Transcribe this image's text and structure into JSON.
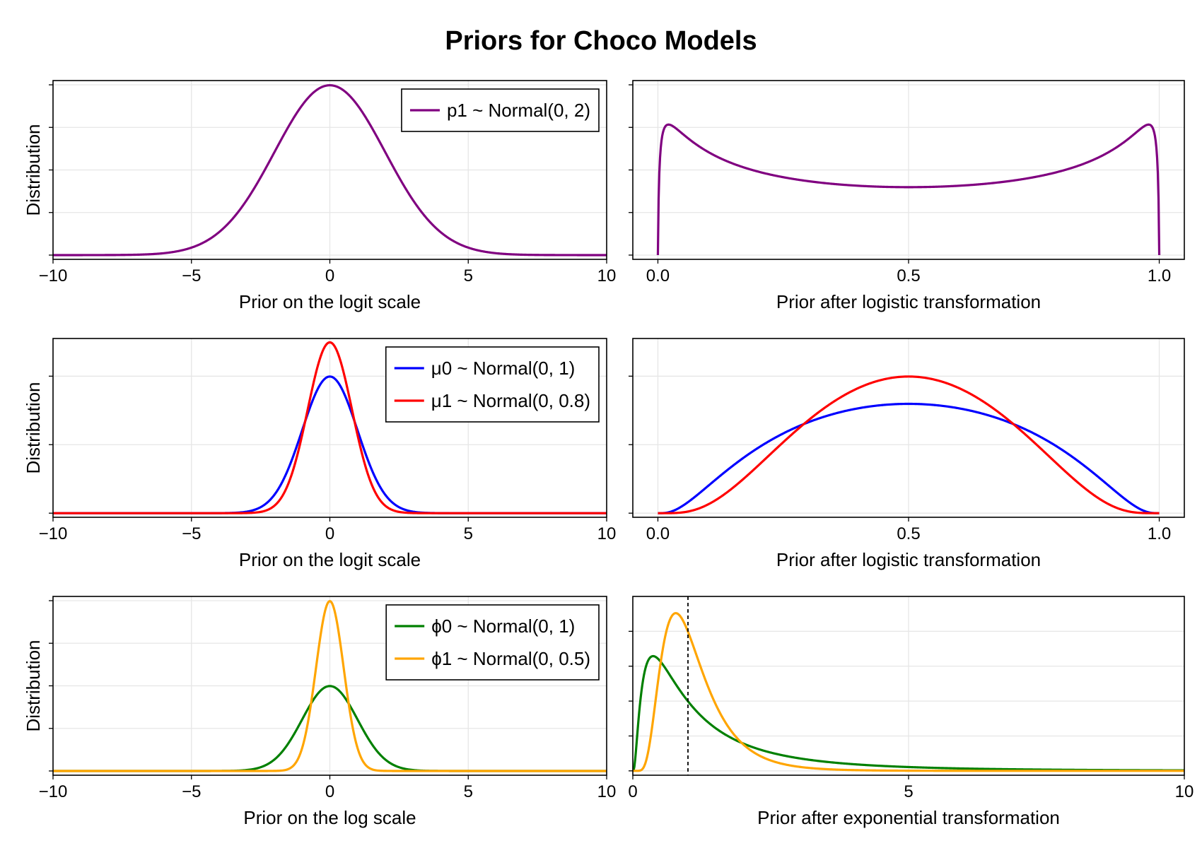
{
  "title": "Priors for Choco Models",
  "chart_data": [
    {
      "type": "line",
      "row": 0,
      "col": 0,
      "xlabel": "Prior on the logit scale",
      "ylabel": "Distribution",
      "xlim": [
        -10,
        10
      ],
      "ylim": [
        -0.005,
        0.205
      ],
      "xticks": [
        -10,
        -5,
        0,
        5,
        10
      ],
      "xticklabels": [
        "−10",
        "−5",
        "0",
        "5",
        "10"
      ],
      "yticks": [
        0,
        0.05,
        0.1,
        0.15,
        0.2
      ],
      "legend": "top-right",
      "series": [
        {
          "name": "p1 ~ Normal(0, 2)",
          "color": "#800080",
          "func": "normal",
          "mu": 0,
          "sigma": 2,
          "domain": [
            -10,
            10
          ]
        }
      ]
    },
    {
      "type": "line",
      "row": 0,
      "col": 1,
      "xlabel": "Prior after logistic transformation",
      "ylabel": "",
      "xlim": [
        -0.05,
        1.05
      ],
      "ylim": [
        -0.05,
        2.05
      ],
      "xticks": [
        0,
        0.5,
        1
      ],
      "xticklabels": [
        "0.0",
        "0.5",
        "1.0"
      ],
      "yticks": [
        0,
        0.5,
        1,
        1.5,
        2
      ],
      "legend": "none",
      "series": [
        {
          "name": "",
          "color": "#800080",
          "func": "logistic",
          "mu": 0,
          "sigma": 2,
          "domain": [
            0,
            1
          ]
        }
      ]
    },
    {
      "type": "line",
      "row": 1,
      "col": 0,
      "xlabel": "Prior on the logit scale",
      "ylabel": "Distribution",
      "xlim": [
        -10,
        10
      ],
      "ylim": [
        -0.012,
        0.51
      ],
      "xticks": [
        -10,
        -5,
        0,
        5,
        10
      ],
      "xticklabels": [
        "−10",
        "−5",
        "0",
        "5",
        "10"
      ],
      "yticks": [
        0,
        0.2,
        0.4
      ],
      "legend": "top-right",
      "series": [
        {
          "name": "μ0 ~ Normal(0, 1)",
          "color": "#0000ff",
          "func": "normal",
          "mu": 0,
          "sigma": 1,
          "domain": [
            -10,
            10
          ]
        },
        {
          "name": "μ1 ~ Normal(0, 0.8)",
          "color": "#ff0000",
          "func": "normal",
          "mu": 0,
          "sigma": 0.8,
          "domain": [
            -10,
            10
          ]
        }
      ]
    },
    {
      "type": "line",
      "row": 1,
      "col": 1,
      "xlabel": "Prior after logistic transformation",
      "ylabel": "",
      "xlim": [
        -0.05,
        1.05
      ],
      "ylim": [
        -0.06,
        2.55
      ],
      "xticks": [
        0,
        0.5,
        1
      ],
      "xticklabels": [
        "0.0",
        "0.5",
        "1.0"
      ],
      "yticks": [
        0,
        1,
        2
      ],
      "legend": "none",
      "series": [
        {
          "name": "",
          "color": "#0000ff",
          "func": "logistic",
          "mu": 0,
          "sigma": 1,
          "domain": [
            0,
            1
          ]
        },
        {
          "name": "",
          "color": "#ff0000",
          "func": "logistic",
          "mu": 0,
          "sigma": 0.8,
          "domain": [
            0,
            1
          ]
        }
      ]
    },
    {
      "type": "line",
      "row": 2,
      "col": 0,
      "xlabel": "Prior on the log scale",
      "ylabel": "Distribution",
      "xlim": [
        -10,
        10
      ],
      "ylim": [
        -0.02,
        0.82
      ],
      "xticks": [
        -10,
        -5,
        0,
        5,
        10
      ],
      "xticklabels": [
        "−10",
        "−5",
        "0",
        "5",
        "10"
      ],
      "yticks": [
        0,
        0.2,
        0.4,
        0.6,
        0.8
      ],
      "legend": "top-right",
      "series": [
        {
          "name": "ϕ0 ~ Normal(0, 1)",
          "color": "#008000",
          "func": "normal",
          "mu": 0,
          "sigma": 1,
          "domain": [
            -10,
            10
          ]
        },
        {
          "name": "ϕ1 ~ Normal(0, 0.5)",
          "color": "#ffa500",
          "func": "normal",
          "mu": 0,
          "sigma": 0.5,
          "domain": [
            -10,
            10
          ]
        }
      ]
    },
    {
      "type": "line",
      "row": 2,
      "col": 1,
      "xlabel": "Prior after exponential transformation",
      "ylabel": "",
      "xlim": [
        0,
        10
      ],
      "ylim": [
        -0.025,
        1.0
      ],
      "xticks": [
        0,
        5,
        10
      ],
      "xticklabels": [
        "0",
        "5",
        "10"
      ],
      "yticks": [
        0,
        0.2,
        0.4,
        0.6,
        0.8
      ],
      "legend": "none",
      "vline": {
        "x": 1,
        "style": "dashed",
        "color": "#000000"
      },
      "series": [
        {
          "name": "",
          "color": "#008000",
          "func": "lognormal",
          "mu": 0,
          "sigma": 1,
          "domain": [
            0,
            10
          ]
        },
        {
          "name": "",
          "color": "#ffa500",
          "func": "lognormal",
          "mu": 0,
          "sigma": 0.5,
          "domain": [
            0,
            10
          ]
        }
      ]
    }
  ]
}
